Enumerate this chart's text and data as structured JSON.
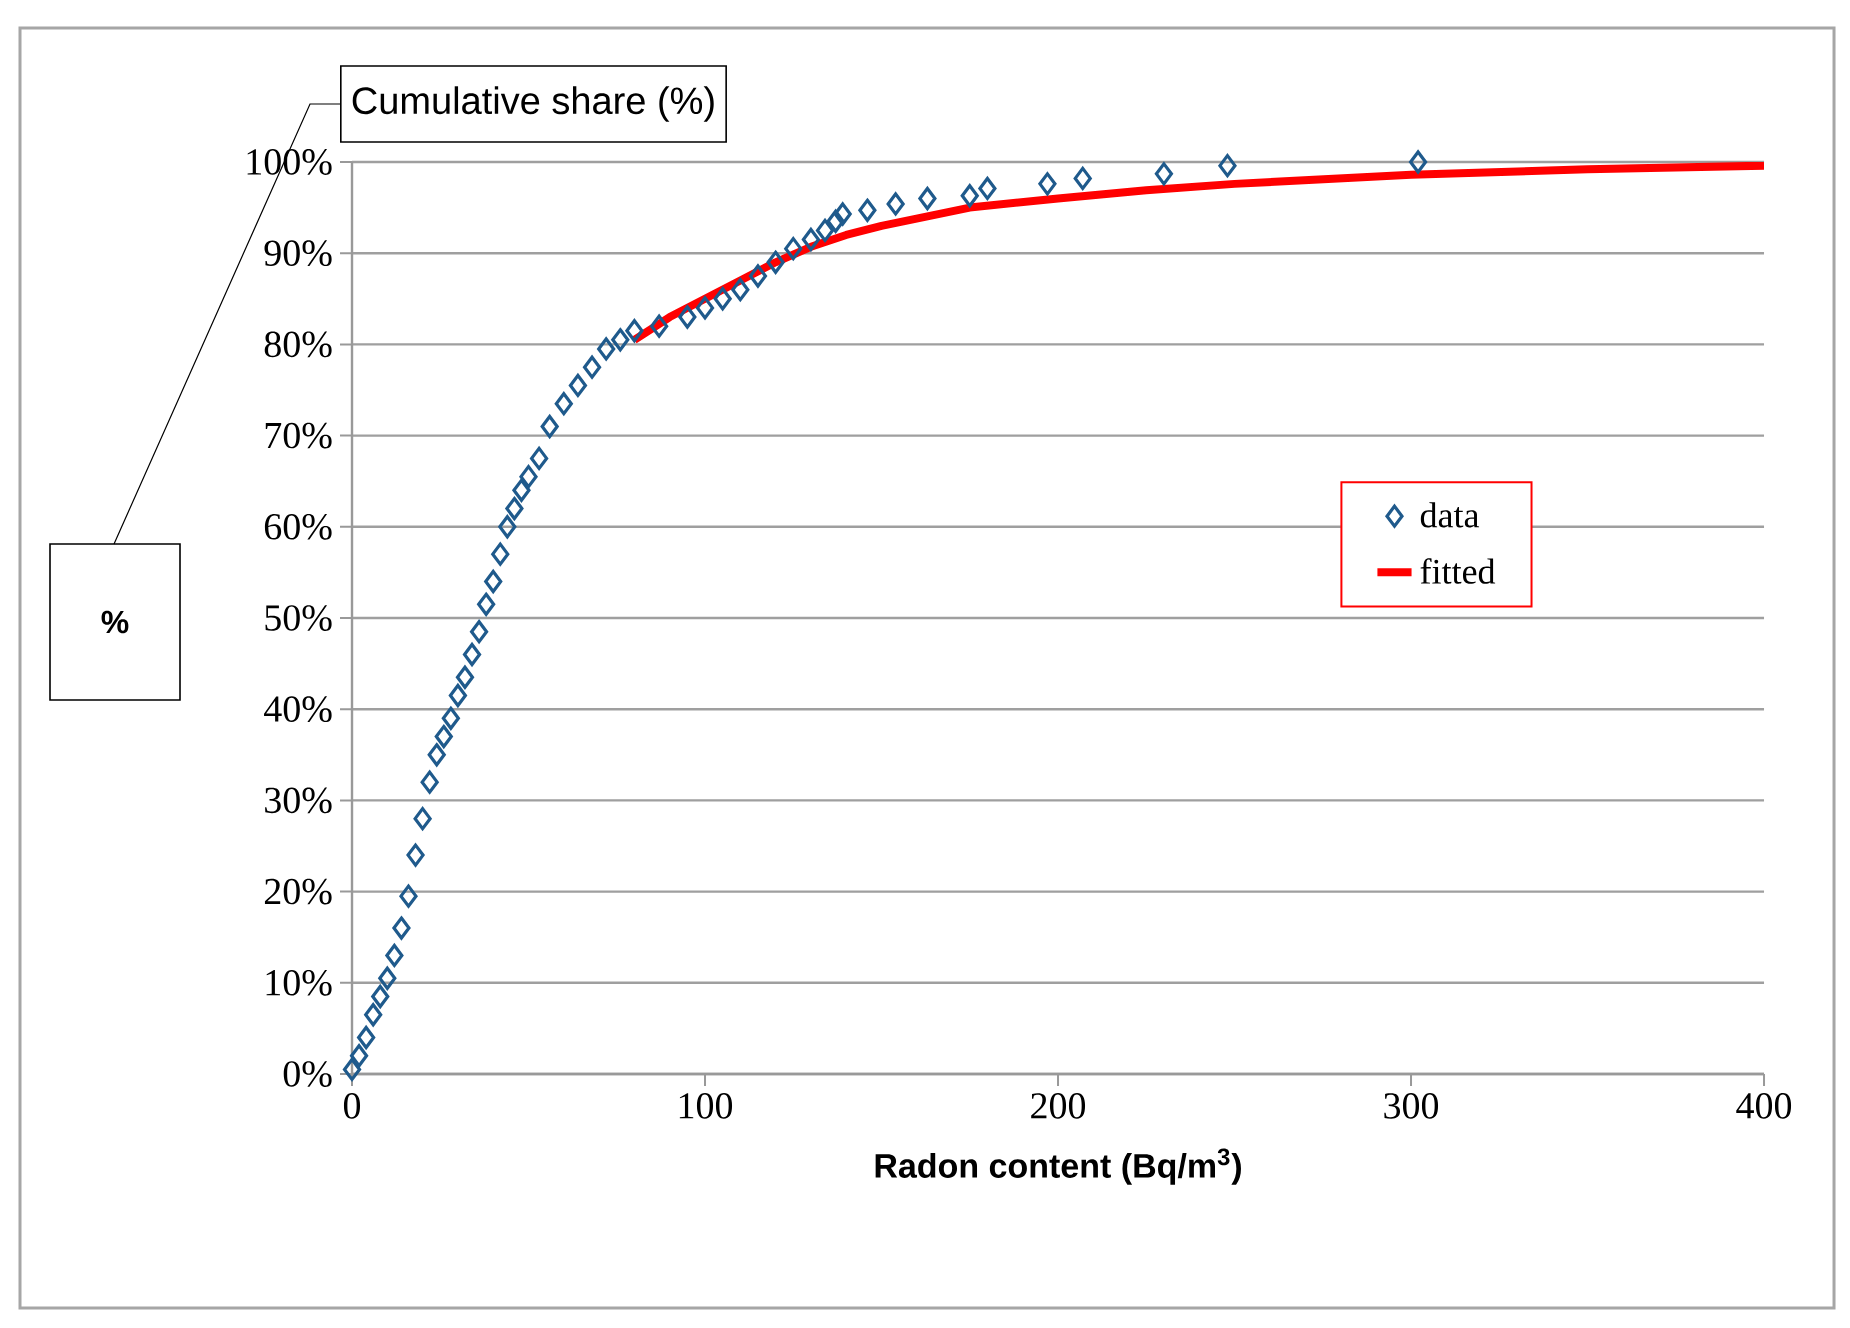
{
  "chart_data": {
    "type": "scatter",
    "xlabel": "Radon content (Bq/m$^{3}$)",
    "ylabel": "%",
    "annotations": [
      "Cumulative share (%)"
    ],
    "xlim": [
      0,
      400
    ],
    "xticks": [
      0,
      100,
      200,
      300,
      400
    ],
    "ylim": [
      0,
      100
    ],
    "yticks": [
      {
        "value": 0,
        "label": "0%"
      },
      {
        "value": 10,
        "label": "10%"
      },
      {
        "value": 20,
        "label": "20%"
      },
      {
        "value": 30,
        "label": "30%"
      },
      {
        "value": 40,
        "label": "40%"
      },
      {
        "value": 50,
        "label": "50%"
      },
      {
        "value": 60,
        "label": "60%"
      },
      {
        "value": 70,
        "label": "70%"
      },
      {
        "value": 80,
        "label": "80%"
      },
      {
        "value": 90,
        "label": "90%"
      },
      {
        "value": 100,
        "label": "100%"
      }
    ],
    "grid": "y",
    "legend": "right",
    "series": [
      {
        "name": "data",
        "marker": "diamond",
        "color": "#1f5a8c",
        "x": [
          0,
          2,
          4,
          6,
          8,
          10,
          12,
          14,
          16,
          18,
          20,
          22,
          24,
          26,
          28,
          30,
          32,
          34,
          36,
          38,
          40,
          42,
          44,
          46,
          48,
          50,
          53,
          56,
          60,
          64,
          68,
          72,
          76,
          80,
          87,
          95,
          100,
          105,
          110,
          115,
          120,
          125,
          130,
          134,
          137,
          139,
          146,
          154,
          163,
          175,
          180,
          197,
          207,
          230,
          248,
          302
        ],
        "values": [
          0.5,
          2,
          4,
          6.5,
          8.5,
          10.5,
          13,
          16,
          19.5,
          24,
          28,
          32,
          35,
          37,
          39,
          41.5,
          43.5,
          46,
          48.5,
          51.5,
          54,
          57,
          60,
          62,
          64,
          65.5,
          67.5,
          71,
          73.5,
          75.5,
          77.5,
          79.5,
          80.5,
          81.5,
          82,
          83,
          84,
          85,
          86,
          87.5,
          89,
          90.5,
          91.5,
          92.5,
          93.5,
          94.3,
          94.7,
          95.4,
          96,
          96.3,
          97.1,
          97.6,
          98.2,
          98.7,
          99.6,
          100
        ]
      },
      {
        "name": "fitted",
        "type": "line",
        "marker": "none",
        "line_style": "solid",
        "color": "#ff0000",
        "x": [
          80,
          90,
          100,
          110,
          120,
          130,
          140,
          150,
          175,
          200,
          225,
          250,
          300,
          350,
          400
        ],
        "values": [
          80.5,
          83,
          85,
          87,
          89,
          90.7,
          92,
          93,
          95,
          96,
          96.9,
          97.6,
          98.6,
          99.2,
          99.6
        ]
      }
    ]
  }
}
